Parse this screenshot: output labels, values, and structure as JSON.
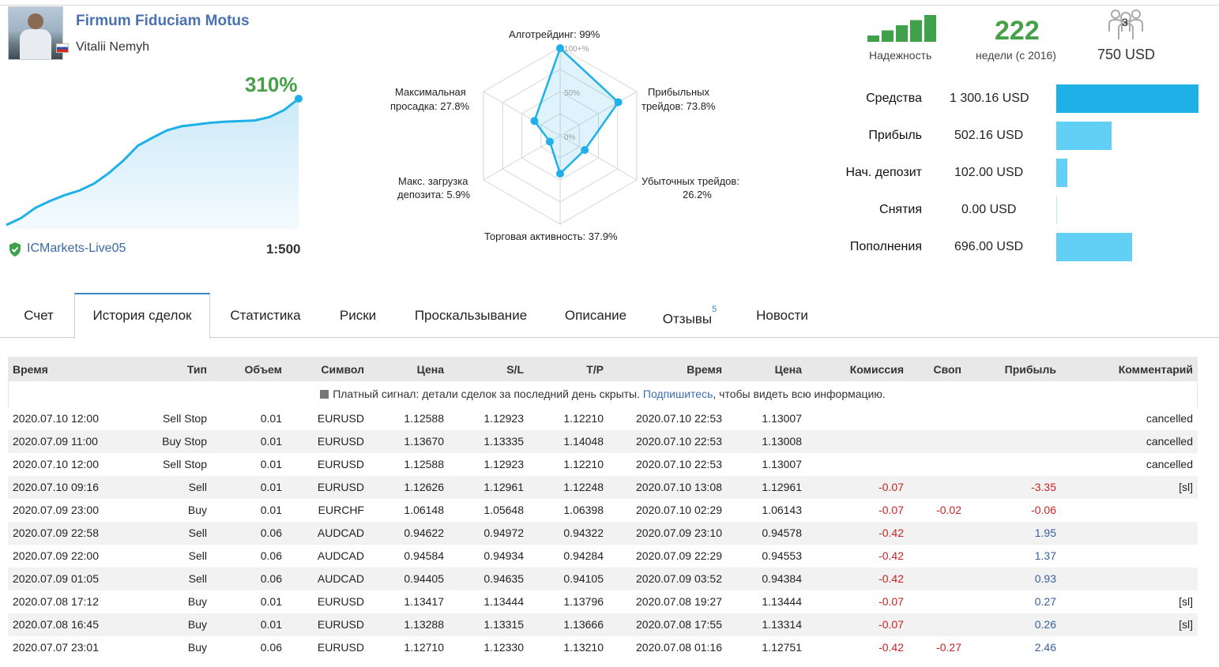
{
  "profile": {
    "signal_name": "Firmum Fiduciam Motus",
    "author": "Vitalii Nemyh",
    "gain": "310%",
    "broker": "ICMarkets-Live05",
    "leverage": "1:500"
  },
  "growth_chart": {
    "type": "area",
    "values": [
      0,
      12,
      30,
      42,
      52,
      60,
      72,
      90,
      112,
      138,
      152,
      165,
      172,
      175,
      178,
      180,
      181,
      182,
      188,
      200,
      220
    ],
    "color": "#1fb0e8"
  },
  "radar": {
    "scale_labels": [
      "100+%",
      "50%",
      "0%"
    ],
    "axes": [
      {
        "label": "Алготрейдинг: 99%",
        "value": 0.99
      },
      {
        "label": "Прибыльных трейдов: 73.8%",
        "value": 0.738
      },
      {
        "label": "Убыточных трейдов: 26.2%",
        "value": 0.262
      },
      {
        "label": "Торговая активность: 37.9%",
        "value": 0.379
      },
      {
        "label": "Макс. загрузка депозита: 5.9%",
        "value": 0.059
      },
      {
        "label": "Максимальная просадка: 27.8%",
        "value": 0.278
      }
    ],
    "label_lines": {
      "algo": "Алготрейдинг: 99%",
      "profit_1": "Прибыльных",
      "profit_2": "трейдов: 73.8%",
      "loss_1": "Убыточных трейдов:",
      "loss_2": "26.2%",
      "activity": "Торговая активность: 37.9%",
      "load_1": "Макс. загрузка",
      "load_2": "депозита: 5.9%",
      "dd_1": "Максимальная",
      "dd_2": "просадка: 27.8%"
    }
  },
  "summary": {
    "reliability_label": "Надежность",
    "reliability_level": 5,
    "weeks": "222",
    "weeks_label": "недели (с 2016)",
    "subscribers": "3",
    "price": "750 USD"
  },
  "stats": [
    {
      "label": "Средства",
      "value": "1 300.16 USD",
      "amount": 1300.16
    },
    {
      "label": "Прибыль",
      "value": "502.16 USD",
      "amount": 502.16
    },
    {
      "label": "Нач. депозит",
      "value": "102.00 USD",
      "amount": 102.0
    },
    {
      "label": "Снятия",
      "value": "0.00 USD",
      "amount": 0
    },
    {
      "label": "Пополнения",
      "value": "696.00 USD",
      "amount": 696.0
    }
  ],
  "tabs": [
    {
      "label": "Счет"
    },
    {
      "label": "История сделок",
      "active": true
    },
    {
      "label": "Статистика"
    },
    {
      "label": "Риски"
    },
    {
      "label": "Проскальзывание"
    },
    {
      "label": "Описание"
    },
    {
      "label": "Отзывы",
      "badge": "5"
    },
    {
      "label": "Новости"
    }
  ],
  "table": {
    "headers": [
      "Время",
      "Тип",
      "Объем",
      "Символ",
      "Цена",
      "S/L",
      "T/P",
      "Время",
      "Цена",
      "Комиссия",
      "Своп",
      "Прибыль",
      "Комментарий"
    ],
    "notice_prefix": "Платный сигнал: детали сделок за последний день скрыты. ",
    "notice_link": "Подпишитесь",
    "notice_suffix": ", чтобы видеть всю информацию.",
    "rows": [
      [
        "2020.07.10 12:00",
        "Sell Stop",
        "0.01",
        "EURUSD",
        "1.12588",
        "1.12923",
        "1.12210",
        "2020.07.10 22:53",
        "1.13007",
        "",
        "",
        "",
        "cancelled"
      ],
      [
        "2020.07.09 11:00",
        "Buy Stop",
        "0.01",
        "EURUSD",
        "1.13670",
        "1.13335",
        "1.14048",
        "2020.07.10 22:53",
        "1.13008",
        "",
        "",
        "",
        "cancelled"
      ],
      [
        "2020.07.10 12:00",
        "Sell Stop",
        "0.01",
        "EURUSD",
        "1.12588",
        "1.12923",
        "1.12210",
        "2020.07.10 22:53",
        "1.13007",
        "",
        "",
        "",
        "cancelled"
      ],
      [
        "2020.07.10 09:16",
        "Sell",
        "0.01",
        "EURUSD",
        "1.12626",
        "1.12961",
        "1.12248",
        "2020.07.10 13:08",
        "1.12961",
        "-0.07",
        "",
        "-3.35",
        "[sl]"
      ],
      [
        "2020.07.09 23:00",
        "Buy",
        "0.01",
        "EURCHF",
        "1.06148",
        "1.05648",
        "1.06398",
        "2020.07.10 02:29",
        "1.06143",
        "-0.07",
        "-0.02",
        "-0.06",
        ""
      ],
      [
        "2020.07.09 22:58",
        "Sell",
        "0.06",
        "AUDCAD",
        "0.94622",
        "0.94972",
        "0.94322",
        "2020.07.09 23:10",
        "0.94578",
        "-0.42",
        "",
        "1.95",
        ""
      ],
      [
        "2020.07.09 22:00",
        "Sell",
        "0.06",
        "AUDCAD",
        "0.94584",
        "0.94934",
        "0.94284",
        "2020.07.09 22:29",
        "0.94553",
        "-0.42",
        "",
        "1.37",
        ""
      ],
      [
        "2020.07.09 01:05",
        "Sell",
        "0.06",
        "AUDCAD",
        "0.94405",
        "0.94635",
        "0.94105",
        "2020.07.09 03:52",
        "0.94384",
        "-0.42",
        "",
        "0.93",
        ""
      ],
      [
        "2020.07.08 17:12",
        "Buy",
        "0.01",
        "EURUSD",
        "1.13417",
        "1.13444",
        "1.13796",
        "2020.07.08 19:27",
        "1.13444",
        "-0.07",
        "",
        "0.27",
        "[sl]"
      ],
      [
        "2020.07.08 16:45",
        "Buy",
        "0.01",
        "EURUSD",
        "1.13288",
        "1.13315",
        "1.13666",
        "2020.07.08 17:55",
        "1.13314",
        "-0.07",
        "",
        "0.26",
        "[sl]"
      ],
      [
        "2020.07.07 23:01",
        "Buy",
        "0.06",
        "EURUSD",
        "1.12710",
        "1.12330",
        "1.13210",
        "2020.07.08 01:16",
        "1.12751",
        "-0.42",
        "-0.27",
        "2.46",
        ""
      ]
    ]
  },
  "colors": {
    "accent": "#1fb0e8",
    "bar": "#62cff4",
    "positive": "#46a04a",
    "negative": "#c22222",
    "link": "#3b6fb0"
  }
}
